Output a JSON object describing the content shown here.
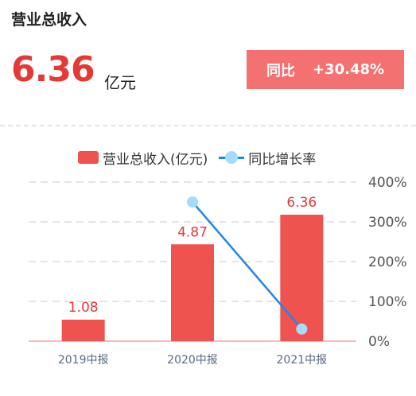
{
  "header": {
    "title": "营业总收入",
    "value": "6.36",
    "unit": "亿元",
    "yoy_label": "同比",
    "yoy_value": "+30.48%"
  },
  "colors": {
    "bar": "#ef5350",
    "line": "#1e88e5",
    "point": "#a7dbfb",
    "value_text": "#e53935",
    "badge": "#f47171"
  },
  "chart_data": {
    "type": "bar",
    "categories": [
      "2019中报",
      "2020中报",
      "2021中报"
    ],
    "series": [
      {
        "name": "营业总收入(亿元)",
        "type": "bar",
        "axis": "left",
        "values": [
          1.08,
          4.87,
          6.36
        ],
        "labels": [
          "1.08",
          "4.87",
          "6.36"
        ]
      },
      {
        "name": "同比增长率",
        "type": "line",
        "axis": "right",
        "values": [
          null,
          350,
          30.48
        ]
      }
    ],
    "y_right_ticks": [
      "0%",
      "100%",
      "200%",
      "300%",
      "400%"
    ],
    "y_right_range": [
      0,
      400
    ],
    "y_left_range": [
      0,
      8
    ],
    "grid": true,
    "legend_position": "top"
  }
}
